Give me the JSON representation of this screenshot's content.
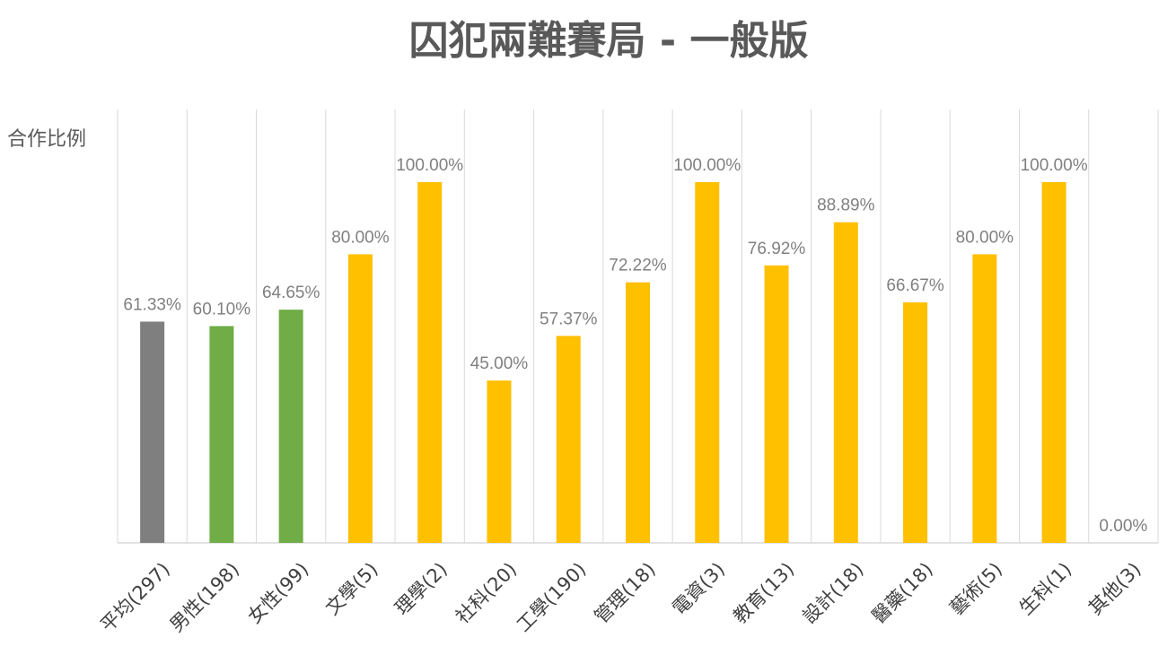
{
  "chart_data": {
    "type": "bar",
    "title": "囚犯兩難賽局 -  一般版",
    "xlabel": "",
    "ylabel": "合作比例",
    "ylim": [
      0,
      100
    ],
    "grid": "vertical",
    "legend": "none",
    "categories": [
      "平均(297)",
      "男性(198)",
      "女性(99)",
      "文學(5)",
      "理學(2)",
      "社科(20)",
      "工學(190)",
      "管理(18)",
      "電資(3)",
      "教育(13)",
      "設計(18)",
      "醫藥(18)",
      "藝術(5)",
      "生科(1)",
      "其他(3)"
    ],
    "values": [
      61.33,
      60.1,
      64.65,
      80.0,
      100.0,
      45.0,
      57.37,
      72.22,
      100.0,
      76.92,
      88.89,
      66.67,
      80.0,
      100.0,
      0.0
    ],
    "data_labels": [
      "61.33%",
      "60.10%",
      "64.65%",
      "80.00%",
      "100.00%",
      "45.00%",
      "57.37%",
      "72.22%",
      "100.00%",
      "76.92%",
      "88.89%",
      "66.67%",
      "80.00%",
      "100.00%",
      "0.00%"
    ],
    "bar_colors": [
      "#7f7f7f",
      "#70ad47",
      "#70ad47",
      "#ffc000",
      "#ffc000",
      "#ffc000",
      "#ffc000",
      "#ffc000",
      "#ffc000",
      "#ffc000",
      "#ffc000",
      "#ffc000",
      "#ffc000",
      "#ffc000",
      "#ffc000"
    ],
    "colors": {
      "gridline": "#d9d9d9",
      "axis": "#d9d9d9",
      "data_label": "#808080",
      "title": "#595959"
    }
  }
}
